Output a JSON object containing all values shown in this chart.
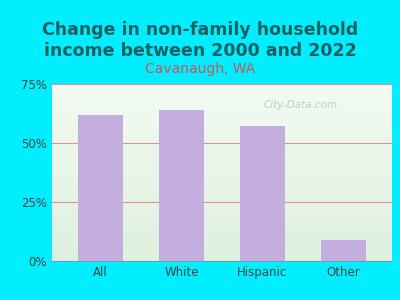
{
  "title": "Change in non-family household\nincome between 2000 and 2022",
  "subtitle": "Cavanaugh, WA",
  "categories": [
    "All",
    "White",
    "Hispanic",
    "Other"
  ],
  "values": [
    62,
    64,
    57,
    9
  ],
  "bar_color": "#c4aee0",
  "title_fontsize": 12.5,
  "subtitle_fontsize": 10,
  "subtitle_color": "#cc5555",
  "title_color": "#1a6060",
  "tick_label_color": "#444444",
  "ylim": [
    0,
    75
  ],
  "yticks": [
    0,
    25,
    50,
    75
  ],
  "ytick_labels": [
    "0%",
    "25%",
    "50%",
    "75%"
  ],
  "background_outer": "#00eeff",
  "grid_color": "#e09090",
  "watermark": "City-Data.com"
}
